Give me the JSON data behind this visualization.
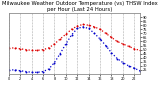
{
  "title": "Milwaukee Weather Outdoor Temperature (vs) THSW Index per Hour (Last 24 Hours)",
  "title_fontsize": 3.8,
  "bg_color": "#ffffff",
  "chart_bg": "#ffffff",
  "fig_bg": "#ffffff",
  "xlim": [
    0,
    23
  ],
  "ylim": [
    20,
    95
  ],
  "y_ticks_right": [
    90,
    85,
    80,
    75,
    70,
    65,
    60,
    55,
    50,
    45,
    40,
    35,
    30,
    25
  ],
  "grid_color": "#aaaaaa",
  "red_color": "#dd0000",
  "blue_color": "#0000cc",
  "temp_data": [
    52,
    52,
    51,
    50,
    49,
    49,
    50,
    52,
    57,
    63,
    69,
    75,
    79,
    81,
    80,
    78,
    75,
    70,
    65,
    60,
    57,
    54,
    51,
    49
  ],
  "thsw_data": [
    25,
    25,
    24,
    23,
    22,
    22,
    23,
    26,
    34,
    45,
    57,
    68,
    76,
    78,
    76,
    70,
    63,
    55,
    46,
    39,
    34,
    30,
    27,
    24
  ],
  "x_tick_every": 2,
  "marker_size": 2.8,
  "line_width": 0.0
}
